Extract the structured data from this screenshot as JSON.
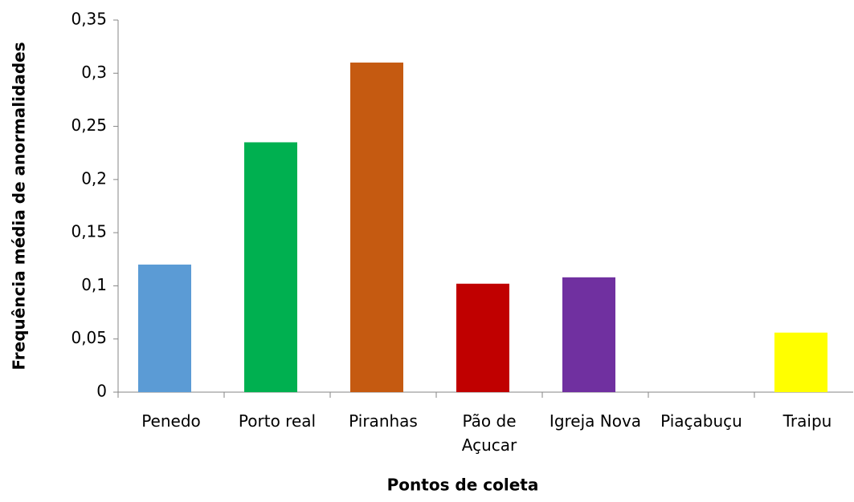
{
  "chart_data": {
    "type": "bar",
    "x_label": "Pontos de coleta",
    "y_label": "Frequência média de anormalidades",
    "categories": [
      "Penedo",
      "Porto real",
      "Piranhas",
      "Pão de Açucar",
      "Igreja Nova",
      "Piaçabuçu",
      "Traipu"
    ],
    "values": [
      0.12,
      0.235,
      0.31,
      0.102,
      0.108,
      0,
      0.056
    ],
    "colors": [
      "#5b9bd5",
      "#00b050",
      "#c55a11",
      "#c00000",
      "#7030a0",
      null,
      "#ffff00"
    ],
    "ylim": [
      0,
      0.35
    ],
    "yticks": [
      0,
      {
        "value": 0.05,
        "label": "0,05"
      },
      {
        "value": 0.1,
        "label": "0,1"
      },
      {
        "value": 0.15,
        "label": "0,15"
      },
      {
        "value": 0.2,
        "label": "0,2"
      },
      {
        "value": 0.25,
        "label": "0,25"
      },
      {
        "value": 0.3,
        "label": "0,3"
      },
      {
        "value": 0.35,
        "label": "0,35"
      }
    ],
    "grid": false
  }
}
